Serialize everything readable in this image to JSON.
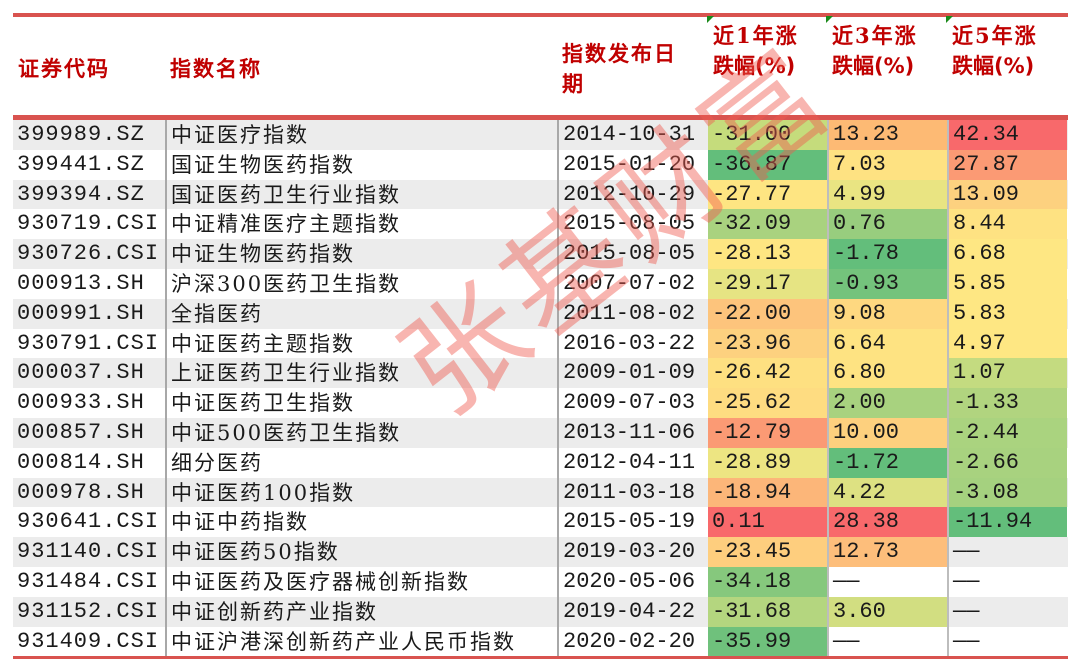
{
  "table": {
    "headers": {
      "code": "证券代码",
      "name": "指数名称",
      "date_line1": "指数发布日",
      "date_line2": "期",
      "y1_line1": "近1年涨",
      "y1_line2": "跌幅(%)",
      "y3_line1": "近3年涨",
      "y3_line2": "跌幅(%)",
      "y5_line1": "近5年涨",
      "y5_line2": "跌幅(%)"
    },
    "rows": [
      {
        "code": "399989.SZ",
        "name": "中证医疗指数",
        "date": "2014-10-31",
        "y1": "-31.00",
        "y3": "13.23",
        "y5": "42.34",
        "y1_color": "#c5dc7c",
        "y3_color": "#fdba74",
        "y5_color": "#f8696b"
      },
      {
        "code": "399441.SZ",
        "name": "国证生物医药指数",
        "date": "2015-01-20",
        "y1": "-36.87",
        "y3": "7.03",
        "y5": "27.87",
        "y1_color": "#63be7b",
        "y3_color": "#fee282",
        "y5_color": "#fb9a74"
      },
      {
        "code": "399394.SZ",
        "name": "国证医药卫生行业指数",
        "date": "2012-10-29",
        "y1": "-27.77",
        "y3": "4.99",
        "y5": "13.09",
        "y1_color": "#fee582",
        "y3_color": "#e9e482",
        "y5_color": "#fdd17f"
      },
      {
        "code": "930719.CSI",
        "name": "中证精准医疗主题指数",
        "date": "2015-08-05",
        "y1": "-32.09",
        "y3": "0.76",
        "y5": "8.44",
        "y1_color": "#a9d27f",
        "y3_color": "#98cd7e",
        "y5_color": "#fee282"
      },
      {
        "code": "930726.CSI",
        "name": "中证生物医药指数",
        "date": "2015-08-05",
        "y1": "-28.13",
        "y3": "-1.78",
        "y5": "6.68",
        "y1_color": "#fee682",
        "y3_color": "#63be7b",
        "y5_color": "#fee783"
      },
      {
        "code": "000913.SH",
        "name": "沪深300医药卫生指数",
        "date": "2007-07-02",
        "y1": "-29.17",
        "y3": "-0.93",
        "y5": "5.85",
        "y1_color": "#e6e483",
        "y3_color": "#74c37c",
        "y5_color": "#fee783"
      },
      {
        "code": "000991.SH",
        "name": "全指医药",
        "date": "2011-08-02",
        "y1": "-22.00",
        "y3": "9.08",
        "y5": "5.83",
        "y1_color": "#fdc47c",
        "y3_color": "#fed880",
        "y5_color": "#fee783"
      },
      {
        "code": "930791.CSI",
        "name": "中证医药主题指数",
        "date": "2016-03-22",
        "y1": "-23.96",
        "y3": "6.64",
        "y5": "4.97",
        "y1_color": "#fdd17f",
        "y3_color": "#fee382",
        "y5_color": "#fee783"
      },
      {
        "code": "000037.SH",
        "name": "上证医药卫生行业指数",
        "date": "2009-01-09",
        "y1": "-26.42",
        "y3": "6.80",
        "y5": "1.07",
        "y1_color": "#fee081",
        "y3_color": "#fee382",
        "y5_color": "#c4db80"
      },
      {
        "code": "000933.SH",
        "name": "中证医药卫生指数",
        "date": "2009-07-03",
        "y1": "-25.62",
        "y3": "2.00",
        "y5": "-1.33",
        "y1_color": "#fedc81",
        "y3_color": "#a8d27f",
        "y5_color": "#b1d47f"
      },
      {
        "code": "000857.SH",
        "name": "中证500医药卫生指数",
        "date": "2013-11-06",
        "y1": "-12.79",
        "y3": "10.00",
        "y5": "-2.44",
        "y1_color": "#fb9a74",
        "y3_color": "#fdd07e",
        "y5_color": "#aad37f"
      },
      {
        "code": "000814.SH",
        "name": "细分医药",
        "date": "2012-04-11",
        "y1": "-28.89",
        "y3": "-1.72",
        "y5": "-2.66",
        "y1_color": "#ede582",
        "y3_color": "#63be7b",
        "y5_color": "#a8d27f"
      },
      {
        "code": "000978.SH",
        "name": "中证医药100指数",
        "date": "2011-03-18",
        "y1": "-18.94",
        "y3": "4.22",
        "y5": "-3.08",
        "y1_color": "#fcb679",
        "y3_color": "#dde182",
        "y5_color": "#a5d17f"
      },
      {
        "code": "930641.CSI",
        "name": "中证中药指数",
        "date": "2015-05-19",
        "y1": "0.11",
        "y3": "28.38",
        "y5": "-11.94",
        "y1_color": "#f8696b",
        "y3_color": "#f8696b",
        "y5_color": "#63be7b"
      },
      {
        "code": "931140.CSI",
        "name": "中证医药50指数",
        "date": "2019-03-20",
        "y1": "-23.45",
        "y3": "12.73",
        "y5": "——",
        "y1_color": "#fece7e",
        "y3_color": "#fdbe7b",
        "y5_color": ""
      },
      {
        "code": "931484.CSI",
        "name": "中证医药及医疗器械创新指数",
        "date": "2020-05-06",
        "y1": "-34.18",
        "y3": "——",
        "y5": "——",
        "y1_color": "#86c87d",
        "y3_color": "",
        "y5_color": ""
      },
      {
        "code": "931152.CSI",
        "name": "中证创新药产业指数",
        "date": "2019-04-22",
        "y1": "-31.68",
        "y3": "3.60",
        "y5": "——",
        "y1_color": "#b4d67f",
        "y3_color": "#d2de81",
        "y5_color": ""
      },
      {
        "code": "931409.CSI",
        "name": "中证沪港深创新药产业人民币指数",
        "date": "2020-02-20",
        "y1": "-35.99",
        "y3": "——",
        "y5": "——",
        "y1_color": "#6fc17c",
        "y3_color": "",
        "y5_color": ""
      }
    ]
  },
  "watermark": "张基财富",
  "colors": {
    "rule_red": "#d9534f",
    "header_text": "#c00000",
    "scale_low_green": "#63be7b",
    "scale_mid_yellow": "#ffeb84",
    "scale_high_red": "#f8696b"
  }
}
